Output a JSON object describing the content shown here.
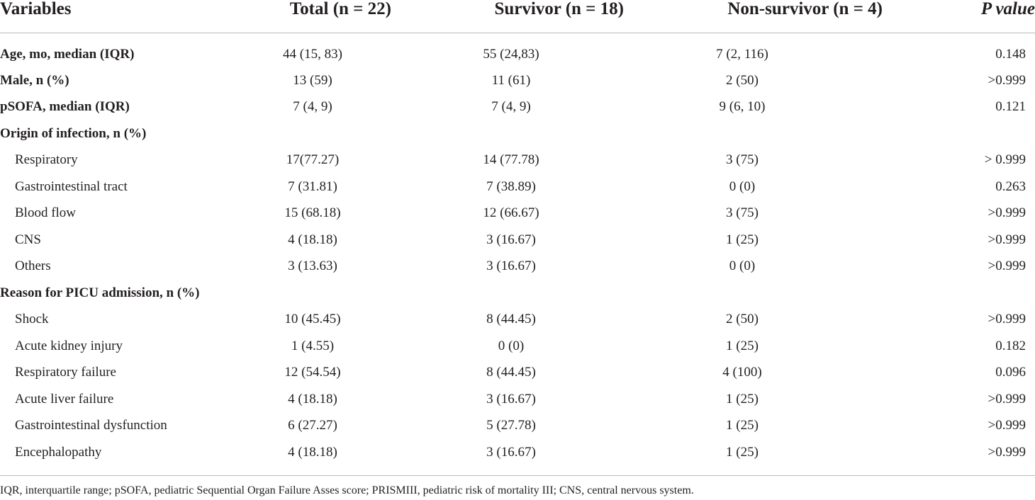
{
  "table": {
    "headers": [
      "Variables",
      "Total (n = 22)",
      "Survivor (n = 18)",
      "Non-survivor (n = 4)",
      "P value"
    ],
    "rows": [
      {
        "label": "Age, mo, median (IQR)",
        "style": "bold",
        "values": [
          "44 (15, 83)",
          "55 (24,83)",
          "7 (2, 116)",
          "0.148"
        ]
      },
      {
        "label": "Male, n (%)",
        "style": "bold",
        "values": [
          "13 (59)",
          "11 (61)",
          "2 (50)",
          ">0.999"
        ]
      },
      {
        "label": "pSOFA, median (IQR)",
        "style": "bold",
        "values": [
          "7 (4, 9)",
          "7 (4, 9)",
          "9 (6, 10)",
          "0.121"
        ]
      },
      {
        "label": "Origin of infection, n (%)",
        "style": "bold",
        "values": [
          "",
          "",
          "",
          ""
        ]
      },
      {
        "label": "Respiratory",
        "style": "indent",
        "values": [
          "17(77.27)",
          "14 (77.78)",
          "3 (75)",
          "> 0.999"
        ]
      },
      {
        "label": "Gastrointestinal tract",
        "style": "indent",
        "values": [
          "7 (31.81)",
          "7 (38.89)",
          "0 (0)",
          "0.263"
        ]
      },
      {
        "label": "Blood flow",
        "style": "indent",
        "values": [
          "15 (68.18)",
          "12 (66.67)",
          "3 (75)",
          ">0.999"
        ]
      },
      {
        "label": "CNS",
        "style": "indent",
        "values": [
          "4 (18.18)",
          "3 (16.67)",
          "1 (25)",
          ">0.999"
        ]
      },
      {
        "label": "Others",
        "style": "indent",
        "values": [
          "3 (13.63)",
          "3 (16.67)",
          "0 (0)",
          ">0.999"
        ]
      },
      {
        "label": "Reason for PICU admission, n (%)",
        "style": "bold",
        "values": [
          "",
          "",
          "",
          ""
        ]
      },
      {
        "label": "Shock",
        "style": "indent",
        "values": [
          "10 (45.45)",
          "8 (44.45)",
          "2 (50)",
          ">0.999"
        ]
      },
      {
        "label": "Acute kidney injury",
        "style": "indent",
        "values": [
          "1 (4.55)",
          "0 (0)",
          "1 (25)",
          "0.182"
        ]
      },
      {
        "label": "Respiratory failure",
        "style": "indent",
        "values": [
          "12 (54.54)",
          "8 (44.45)",
          "4 (100)",
          "0.096"
        ]
      },
      {
        "label": "Acute liver failure",
        "style": "indent",
        "values": [
          "4 (18.18)",
          "3 (16.67)",
          "1 (25)",
          ">0.999"
        ]
      },
      {
        "label": "Gastrointestinal dysfunction",
        "style": "indent",
        "values": [
          "6 (27.27)",
          "5 (27.78)",
          "1 (25)",
          ">0.999"
        ]
      },
      {
        "label": "Encephalopathy",
        "style": "indent",
        "values": [
          "4 (18.18)",
          "3 (16.67)",
          "1 (25)",
          ">0.999"
        ]
      }
    ]
  },
  "footnote": "IQR, interquartile range; pSOFA, pediatric Sequential Organ Failure Asses score; PRISMIII, pediatric risk of mortality III; CNS, central nervous system."
}
